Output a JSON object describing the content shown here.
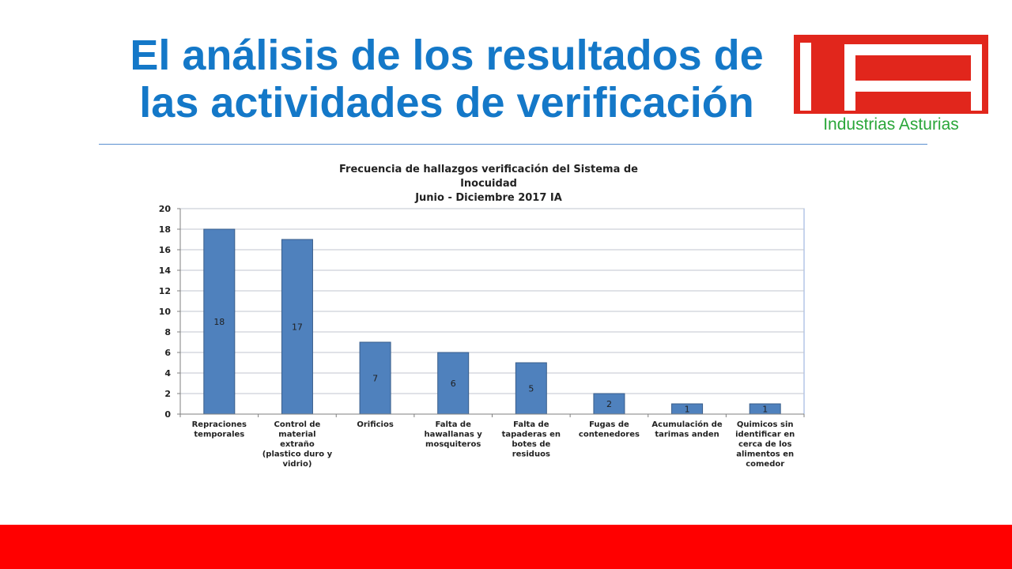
{
  "slide": {
    "title_line1": "El análisis de los resultados de",
    "title_line2": "las actividades de verificación",
    "title_color": "#1478c8"
  },
  "logo": {
    "letters": "IA",
    "company": "Industrias Asturias",
    "red": "#e1261c",
    "green": "#2aa639"
  },
  "footer": {
    "color": "#ff0000"
  },
  "chart_data": {
    "type": "bar",
    "title_lines": [
      "Frecuencia de hallazgos verificación del Sistema de",
      "Inocuidad",
      "Junio - Diciembre 2017 IA"
    ],
    "categories": [
      [
        "Repraciones",
        "temporales"
      ],
      [
        "Control de",
        "material",
        "extraño",
        "(plastico duro y",
        "vidrio)"
      ],
      [
        "Orificios"
      ],
      [
        "Falta de",
        "hawallanas y",
        "mosquiteros"
      ],
      [
        "Falta de",
        "tapaderas en",
        "botes de",
        "residuos"
      ],
      [
        "Fugas de",
        "contenedores"
      ],
      [
        "Acumulación de",
        "tarimas anden"
      ],
      [
        "Quimicos sin",
        "identificar en",
        "cerca de los",
        "alimentos en",
        "comedor"
      ]
    ],
    "values": [
      18,
      17,
      7,
      6,
      5,
      2,
      1,
      1
    ],
    "data_labels": [
      "18",
      "17",
      "7",
      "6",
      "5",
      "2",
      "1",
      "1"
    ],
    "yticks": [
      0,
      2,
      4,
      6,
      8,
      10,
      12,
      14,
      16,
      18,
      20
    ],
    "ylim": [
      0,
      20
    ],
    "bar_color": "#4f81bd",
    "bar_edge_color": "#385d8a",
    "grid": true,
    "legend": "none"
  }
}
